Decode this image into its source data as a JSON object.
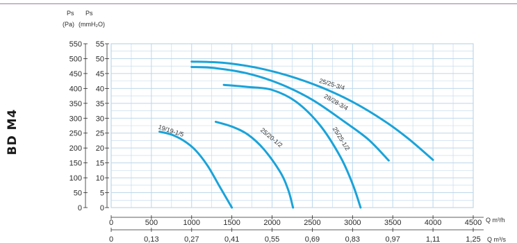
{
  "side_label": "BD M4",
  "colors": {
    "grid": "#bcd7ea",
    "curve": "#1aa3d9",
    "frame": "#9a7898",
    "text": "#2a2a2a"
  },
  "chart_data": {
    "type": "line",
    "y_unit_pa": {
      "line1": "Ps",
      "line2": "(Pa)"
    },
    "y_unit_mmh2o": {
      "line1": "Ps",
      "line2": "(mmH₂O)"
    },
    "x_unit_m3h": "Q m³/h",
    "x_unit_m3s": "Q m³/s",
    "y_pa_ticks": [
      "550",
      "500",
      "450",
      "400",
      "350",
      "300",
      "250",
      "200",
      "150",
      "100",
      "50",
      "0"
    ],
    "y_mm_ticks": [
      "55",
      "50",
      "45",
      "40",
      "35",
      "30",
      "25",
      "20",
      "15",
      "10",
      "5",
      "0"
    ],
    "x_m3h_ticks": [
      "0",
      "500",
      "1000",
      "1500",
      "2000",
      "2500",
      "3000",
      "3500",
      "4000",
      "4500"
    ],
    "x_m3s_ticks": [
      "0",
      "0,13",
      "0,27",
      "0,41",
      "0,55",
      "0,69",
      "0,83",
      "0,97",
      "1,11",
      "1,25"
    ],
    "xlim": [
      0,
      4500
    ],
    "ylim_pa": [
      0,
      550
    ],
    "grid": true,
    "series": [
      {
        "name": "19/19-1/5",
        "points": [
          [
            600,
            255
          ],
          [
            750,
            245
          ],
          [
            900,
            225
          ],
          [
            1050,
            192
          ],
          [
            1200,
            140
          ],
          [
            1350,
            70
          ],
          [
            1500,
            0
          ]
        ]
      },
      {
        "name": "25/20-1/2",
        "points": [
          [
            1300,
            288
          ],
          [
            1500,
            272
          ],
          [
            1700,
            245
          ],
          [
            1900,
            195
          ],
          [
            2100,
            120
          ],
          [
            2200,
            60
          ],
          [
            2260,
            0
          ]
        ]
      },
      {
        "name": "25/25-1/2",
        "points": [
          [
            1400,
            412
          ],
          [
            1700,
            405
          ],
          [
            2000,
            395
          ],
          [
            2300,
            355
          ],
          [
            2600,
            275
          ],
          [
            2850,
            170
          ],
          [
            3000,
            80
          ],
          [
            3100,
            0
          ]
        ]
      },
      {
        "name": "28/28-3/4",
        "points": [
          [
            1000,
            472
          ],
          [
            1300,
            468
          ],
          [
            1700,
            450
          ],
          [
            2100,
            415
          ],
          [
            2500,
            362
          ],
          [
            2900,
            288
          ],
          [
            3200,
            228
          ],
          [
            3450,
            158
          ]
        ]
      },
      {
        "name": "25/25-3/4",
        "points": [
          [
            1000,
            490
          ],
          [
            1400,
            486
          ],
          [
            1800,
            470
          ],
          [
            2200,
            443
          ],
          [
            2600,
            405
          ],
          [
            3000,
            355
          ],
          [
            3400,
            290
          ],
          [
            3700,
            230
          ],
          [
            4000,
            160
          ]
        ]
      }
    ]
  }
}
